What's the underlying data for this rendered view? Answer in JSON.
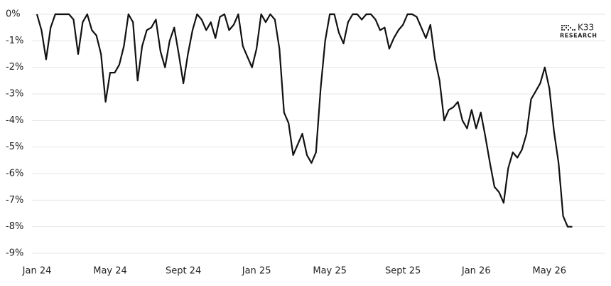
{
  "chart_data": {
    "type": "line",
    "annotations": [
      "K33",
      "RESEARCH"
    ],
    "categories": [
      "Jan 24",
      null,
      null,
      null,
      null,
      null,
      null,
      null,
      null,
      null,
      null,
      null,
      null,
      null,
      null,
      null,
      "May 24",
      null,
      null,
      null,
      null,
      null,
      null,
      null,
      null,
      null,
      null,
      null,
      null,
      null,
      null,
      null,
      "Sept 24",
      null,
      null,
      null,
      null,
      null,
      null,
      null,
      null,
      null,
      null,
      null,
      null,
      null,
      null,
      null,
      "Jan 25",
      null,
      null,
      null,
      null,
      null,
      null,
      null,
      null,
      null,
      null,
      null,
      null,
      null,
      null,
      null,
      "May 25",
      null,
      null,
      null,
      null,
      null,
      null,
      null,
      null,
      null,
      null,
      null,
      null,
      null,
      null,
      null,
      "Sept 25",
      null,
      null,
      null,
      null,
      null,
      null,
      null,
      null,
      null,
      null,
      null,
      null,
      null,
      null,
      null,
      "Jan 26",
      null,
      null,
      null,
      null,
      null,
      null,
      null,
      null,
      null,
      null,
      null,
      null,
      null,
      null,
      null,
      "May 26",
      null,
      null,
      null,
      null,
      null
    ],
    "values": [
      0,
      -0.6,
      -1.7,
      -0.5,
      0,
      0,
      0,
      0,
      -0.2,
      -1.5,
      -0.3,
      0,
      -0.6,
      -0.8,
      -1.5,
      -3.3,
      -2.2,
      -2.2,
      -1.9,
      -1.2,
      0,
      -0.3,
      -2.5,
      -1.2,
      -0.6,
      -0.5,
      -0.2,
      -1.4,
      -2.0,
      -1.0,
      -0.5,
      -1.5,
      -2.6,
      -1.5,
      -0.6,
      0,
      -0.2,
      -0.6,
      -0.3,
      -0.9,
      -0.1,
      0,
      -0.6,
      -0.4,
      0,
      -1.2,
      -1.6,
      -2.0,
      -1.3,
      0,
      -0.3,
      0,
      -0.2,
      -1.3,
      -3.7,
      -4.1,
      -5.3,
      -4.9,
      -4.5,
      -5.3,
      -5.6,
      -5.2,
      -2.8,
      -1.0,
      0,
      0,
      -0.7,
      -1.1,
      -0.3,
      0,
      0,
      -0.2,
      0,
      0,
      -0.2,
      -0.6,
      -0.5,
      -1.3,
      -0.9,
      -0.6,
      -0.4,
      0,
      0,
      -0.1,
      -0.5,
      -0.9,
      -0.4,
      -1.7,
      -2.5,
      -4.0,
      -3.6,
      -3.5,
      -3.3,
      -4.0,
      -4.3,
      -3.6,
      -4.3,
      -3.7,
      -4.6,
      -5.6,
      -6.5,
      -6.7,
      -7.1,
      -5.8,
      -5.2,
      -5.4,
      -5.1,
      -4.5,
      -3.2,
      -2.9,
      -2.6,
      -2.0,
      -2.8,
      -4.4,
      -5.6,
      -7.6,
      -8.0,
      -8.0
    ],
    "color": "#111111",
    "ylim": [
      -9,
      0
    ],
    "yticks": [
      {
        "value": 0,
        "label": "0%"
      },
      {
        "value": -1,
        "label": "-1%"
      },
      {
        "value": -2,
        "label": "-2%"
      },
      {
        "value": -3,
        "label": "-3%"
      },
      {
        "value": -4,
        "label": "-4%"
      },
      {
        "value": -5,
        "label": "-5%"
      },
      {
        "value": -6,
        "label": "-6%"
      },
      {
        "value": -7,
        "label": "-7%"
      },
      {
        "value": -8,
        "label": "-8%"
      },
      {
        "value": -9,
        "label": "-9%"
      }
    ],
    "grid": true
  }
}
